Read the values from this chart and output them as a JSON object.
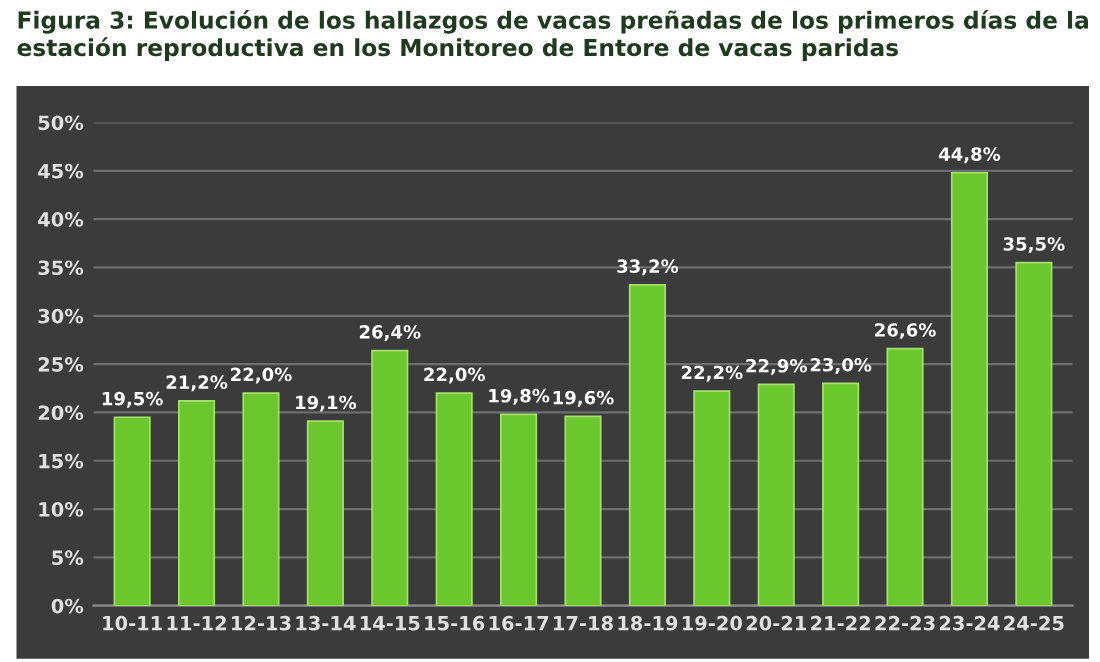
{
  "chart_data": {
    "type": "bar",
    "title": "Figura 3: Evolución de los hallazgos de vacas preñadas de los primeros días de la estación reproductiva en los Monitoreo de Entore de vacas paridas",
    "categories": [
      "10-11",
      "11-12",
      "12-13",
      "13-14",
      "14-15",
      "15-16",
      "16-17",
      "17-18",
      "18-19",
      "19-20",
      "20-21",
      "21-22",
      "22-23",
      "23-24",
      "24-25"
    ],
    "values": [
      19.5,
      21.2,
      22.0,
      19.1,
      26.4,
      22.0,
      19.8,
      19.6,
      33.2,
      22.2,
      22.9,
      23.0,
      26.6,
      44.8,
      35.5
    ],
    "value_labels": [
      "19,5%",
      "21,2%",
      "22,0%",
      "19,1%",
      "26,4%",
      "22,0%",
      "19,8%",
      "19,6%",
      "33,2%",
      "22,2%",
      "22,9%",
      "23,0%",
      "26,6%",
      "44,8%",
      "35,5%"
    ],
    "color": "#6cc62e",
    "ylim": [
      0,
      50
    ],
    "yticks": [
      {
        "value": 0,
        "label": "0%"
      },
      {
        "value": 5,
        "label": "5%"
      },
      {
        "value": 10,
        "label": "10%"
      },
      {
        "value": 15,
        "label": "15%"
      },
      {
        "value": 20,
        "label": "20%"
      },
      {
        "value": 25,
        "label": "25%"
      },
      {
        "value": 30,
        "label": "30%"
      },
      {
        "value": 35,
        "label": "35%"
      },
      {
        "value": 40,
        "label": "40%"
      },
      {
        "value": 45,
        "label": "45%"
      },
      {
        "value": 50,
        "label": "50%"
      }
    ],
    "grid": "y"
  }
}
